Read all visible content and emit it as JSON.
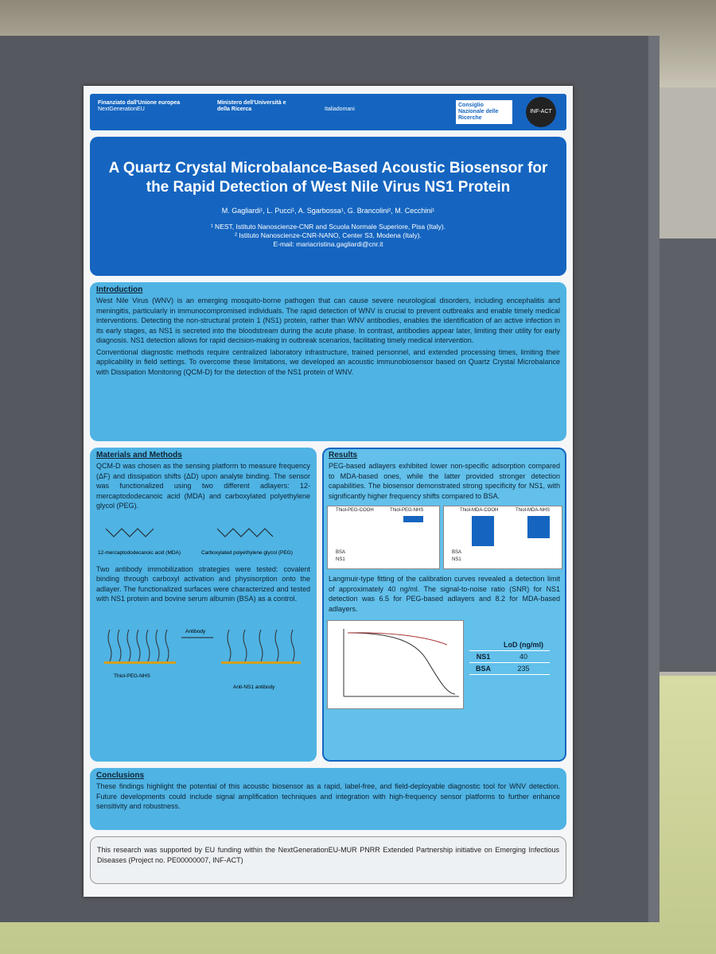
{
  "header": {
    "eu": "Finanziato dall'Unione europea",
    "eu_sub": "NextGenerationEU",
    "ministry": "Ministero dell'Università e della Ricerca",
    "italia": "Italiadomani",
    "cnr": "Consiglio Nazionale delle Ricerche",
    "infact": "INF-ACT"
  },
  "title": "A Quartz Crystal Microbalance-Based Acoustic Biosensor for the Rapid Detection of West Nile Virus NS1 Protein",
  "authors": "M. Gagliardi¹, L. Pucci¹, A. Sgarbossa¹, G. Brancolini², M. Cecchini¹",
  "affiliations": [
    "¹ NEST, Istituto Nanoscienze-CNR and Scuola Normale Superiore, Pisa (Italy).",
    "² Istituto Nanoscienze-CNR-NANO, Center S3, Modena (Italy).",
    "E-mail: mariacristina.gagliardi@cnr.it"
  ],
  "introduction": {
    "title": "Introduction",
    "paragraphs": [
      "West Nile Virus (WNV) is an emerging mosquito-borne pathogen that can cause severe neurological disorders, including encephalitis and meningitis, particularly in immunocompromised individuals. The rapid detection of WNV is crucial to prevent outbreaks and enable timely medical interventions. Detecting the non-structural protein 1 (NS1) protein, rather than WNV antibodies, enables the identification of an active infection in its early stages, as NS1 is secreted into the bloodstream during the acute phase. In contrast, antibodies appear later, limiting their utility for early diagnosis. NS1 detection allows for rapid decision-making in outbreak scenarios, facilitating timely medical intervention.",
      "Conventional diagnostic methods require centralized laboratory infrastructure, trained personnel, and extended processing times, limiting their applicability in field settings. To overcome these limitations, we developed an acoustic immunobiosensor based on Quartz Crystal Microbalance with Dissipation Monitoring (QCM-D) for the detection of the NS1 protein of WNV."
    ]
  },
  "materials": {
    "title": "Materials and Methods",
    "paragraphs": [
      "QCM-D was chosen as the sensing platform to measure frequency (ΔF) and dissipation shifts (ΔD) upon analyte binding. The sensor was functionalized using two different adlayers: 12-mercaptododecanoic acid (MDA) and carboxylated polyethylene glycol (PEG).",
      "Two antibody immobilization strategies were tested: covalent binding through carboxyl activation and physisorption onto the adlayer. The functionalized surfaces were characterized and tested with NS1 protein and bovine serum albumin (BSA) as a control."
    ],
    "molecules": [
      "12-mercaptododecanoic acid (MDA)",
      "Carboxylated polyethylene glycol (PEG)"
    ],
    "diagram": [
      "Antibody",
      "Thiol-PEG-NHS",
      "Anti-NS1 antibody"
    ]
  },
  "results": {
    "title": "Results",
    "paragraphs": [
      "PEG-based adlayers exhibited lower non-specific adsorption compared to MDA-based ones, while the latter provided stronger detection capabilities. The biosensor demonstrated strong specificity for NS1, with significantly higher frequency shifts compared to BSA.",
      "Langmuir-type fitting of the calibration curves revealed a detection limit of approximately 40 ng/ml. The signal-to-noise ratio (SNR) for NS1 detection was 6.5 for PEG-based adlayers and 8.2 for MDA-based adlayers."
    ],
    "chart_groups": [
      "Thiol-PEG-COOH",
      "Thiol-PEG-NHS",
      "Thiol-MDA-COOH",
      "Thiol-MDA-NHS"
    ],
    "legend": [
      "BSA",
      "NS1"
    ],
    "table": {
      "header": "LoD (ng/ml)",
      "rows": [
        [
          "NS1",
          "40"
        ],
        [
          "BSA",
          "235"
        ]
      ]
    }
  },
  "conclusions": {
    "title": "Conclusions",
    "text": "These findings highlight the potential of this acoustic biosensor as a rapid, label-free, and field-deployable diagnostic tool for WNV detection. Future developments could include signal amplification techniques and integration with high-frequency sensor platforms to further enhance sensitivity and robustness."
  },
  "acknowledgment": "This research was supported by EU funding within the NextGenerationEU-MUR PNRR Extended Partnership initiative on Emerging Infectious Diseases (Project no. PE00000007, INF-ACT)"
}
